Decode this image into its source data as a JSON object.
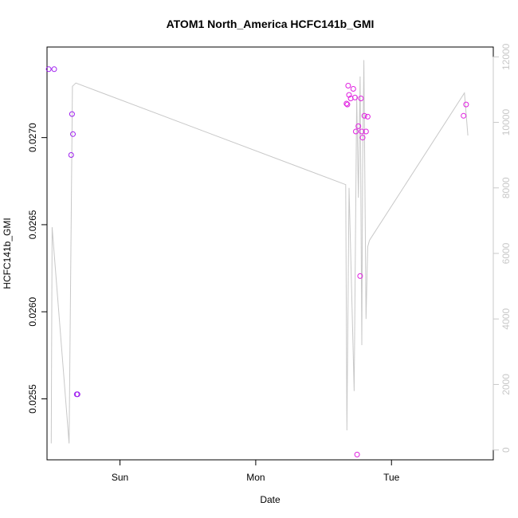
{
  "chart_data": {
    "type": "scatter",
    "title": "ATOM1 North_America HCFC141b_GMI",
    "xlabel": "Date",
    "ylabel": "HCFC141b_GMI",
    "x_ticks": [
      "Sun",
      "Mon",
      "Tue"
    ],
    "y_ticks": [
      "0.0255",
      "0.0260",
      "0.0265",
      "0.0270"
    ],
    "y_right_ticks": [
      "0",
      "2000",
      "4000",
      "6000",
      "8000",
      "10000",
      "12000"
    ],
    "xlim_hours": [
      -16.6,
      36.0
    ],
    "ylim": [
      0.02515,
      0.02752
    ],
    "y_right_lim": [
      -300,
      12300
    ],
    "grid": false,
    "colors": {
      "line": "#c8c8c8",
      "points_a": "#a020f0",
      "points_b": "#e020e0",
      "axis": "#000000",
      "right_axis": "#c8c8c8"
    },
    "series": [
      {
        "kind": "points",
        "axis": "left",
        "x_hours": [
          -16.4,
          -15.75,
          -13.75,
          -13.65,
          -13.55,
          -13.1,
          -13.0,
          18.7,
          18.8,
          18.9,
          19.0,
          19.2,
          19.5,
          19.7,
          19.8,
          19.95,
          20.1,
          20.3,
          20.4,
          20.5,
          20.6,
          20.8,
          21.0,
          21.2,
          32.5,
          32.8
        ],
        "y": [
          0.027393,
          0.027393,
          0.0269,
          0.027135,
          0.02702,
          0.025526,
          0.025526,
          0.027195,
          0.02719,
          0.027298,
          0.027245,
          0.027225,
          0.02728,
          0.02723,
          0.027035,
          0.02518,
          0.027065,
          0.026205,
          0.027225,
          0.027035,
          0.027,
          0.027125,
          0.027035,
          0.02712,
          0.027125,
          0.02719
        ],
        "color_group": [
          "a",
          "a",
          "a",
          "a",
          "a",
          "a",
          "a",
          "b",
          "b",
          "b",
          "b",
          "b",
          "b",
          "b",
          "b",
          "b",
          "b",
          "b",
          "b",
          "b",
          "b",
          "b",
          "b",
          "b",
          "b",
          "b"
        ]
      },
      {
        "kind": "line",
        "axis": "right",
        "x_hours": [
          -16.1,
          -16.0,
          -14.0,
          -13.6,
          -13.2,
          18.6,
          18.75,
          19.0,
          19.6,
          19.9,
          20.1,
          20.3,
          20.5,
          20.6,
          20.75,
          21.0,
          21.2,
          21.4,
          32.6,
          33.0
        ],
        "y": [
          200,
          6800,
          200,
          11100,
          11200,
          8100,
          600,
          8000,
          1800,
          10800,
          7700,
          11400,
          3200,
          8500,
          11900,
          4000,
          6200,
          6400,
          10900,
          9600
        ]
      }
    ]
  }
}
